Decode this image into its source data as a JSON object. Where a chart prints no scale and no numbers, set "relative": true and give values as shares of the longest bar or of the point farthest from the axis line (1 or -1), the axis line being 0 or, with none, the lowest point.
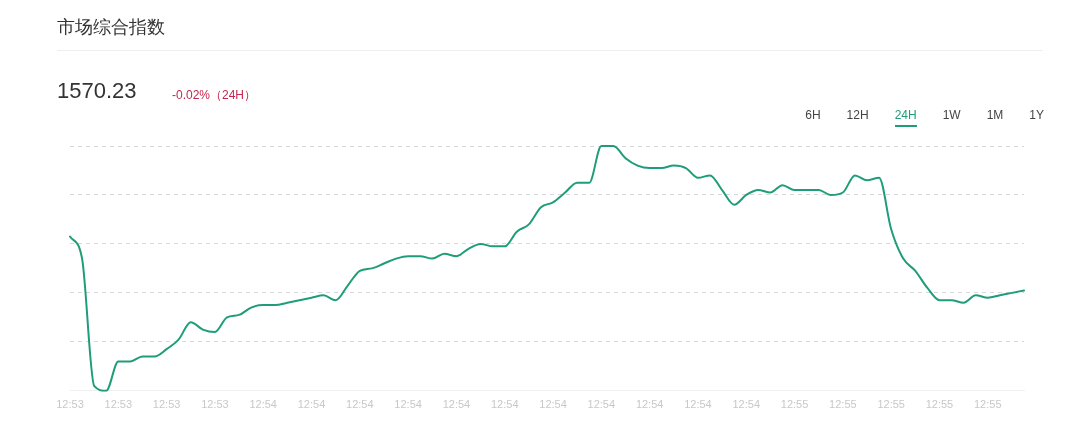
{
  "chart_data": {
    "type": "line",
    "title": "市场综合指数",
    "relative": true,
    "grid": "y",
    "marker": "none",
    "line_style": "solid",
    "legend": false,
    "annotations": [
      "1570.23",
      "-0.02%（24H）",
      "6H",
      "12H",
      "24H",
      "1W",
      "1M",
      "1Y"
    ],
    "categories": [
      "12:53",
      null,
      null,
      null,
      "12:53",
      null,
      null,
      null,
      "12:53",
      null,
      null,
      null,
      "12:53",
      null,
      null,
      null,
      "12:54",
      null,
      null,
      null,
      "12:54",
      null,
      null,
      null,
      "12:54",
      null,
      null,
      null,
      "12:54",
      null,
      null,
      null,
      "12:54",
      null,
      null,
      null,
      "12:54",
      null,
      null,
      null,
      "12:54",
      null,
      null,
      null,
      "12:54",
      null,
      null,
      null,
      "12:54",
      null,
      null,
      null,
      "12:54",
      null,
      null,
      null,
      "12:54",
      null,
      null,
      null,
      "12:55",
      null,
      null,
      null,
      "12:55",
      null,
      null,
      null,
      "12:55",
      null,
      null,
      null,
      "12:55",
      null,
      null,
      null,
      "12:55",
      null,
      null,
      null
    ],
    "series": [
      {
        "color": "#1f9d78",
        "values": [
          0.63,
          0.54,
          0.02,
          0,
          0.12,
          0.12,
          0.14,
          0.14,
          0.17,
          0.21,
          0.28,
          0.25,
          0.24,
          0.3,
          0.31,
          0.34,
          0.35,
          0.35,
          0.36,
          0.37,
          0.38,
          0.39,
          0.37,
          0.43,
          0.49,
          0.5,
          0.52,
          0.54,
          0.55,
          0.55,
          0.54,
          0.56,
          0.55,
          0.58,
          0.6,
          0.59,
          0.59,
          0.65,
          0.68,
          0.75,
          0.77,
          0.81,
          0.85,
          0.85,
          1,
          1,
          0.95,
          0.92,
          0.91,
          0.91,
          0.92,
          0.91,
          0.87,
          0.88,
          0.82,
          0.76,
          0.8,
          0.82,
          0.81,
          0.84,
          0.82,
          0.82,
          0.82,
          0.8,
          0.81,
          0.88,
          0.86,
          0.87,
          0.66,
          0.54,
          0.49,
          0.42,
          0.37,
          0.37,
          0.36,
          0.39,
          0.38,
          0.39,
          0.4,
          0.41
        ]
      }
    ]
  }
}
